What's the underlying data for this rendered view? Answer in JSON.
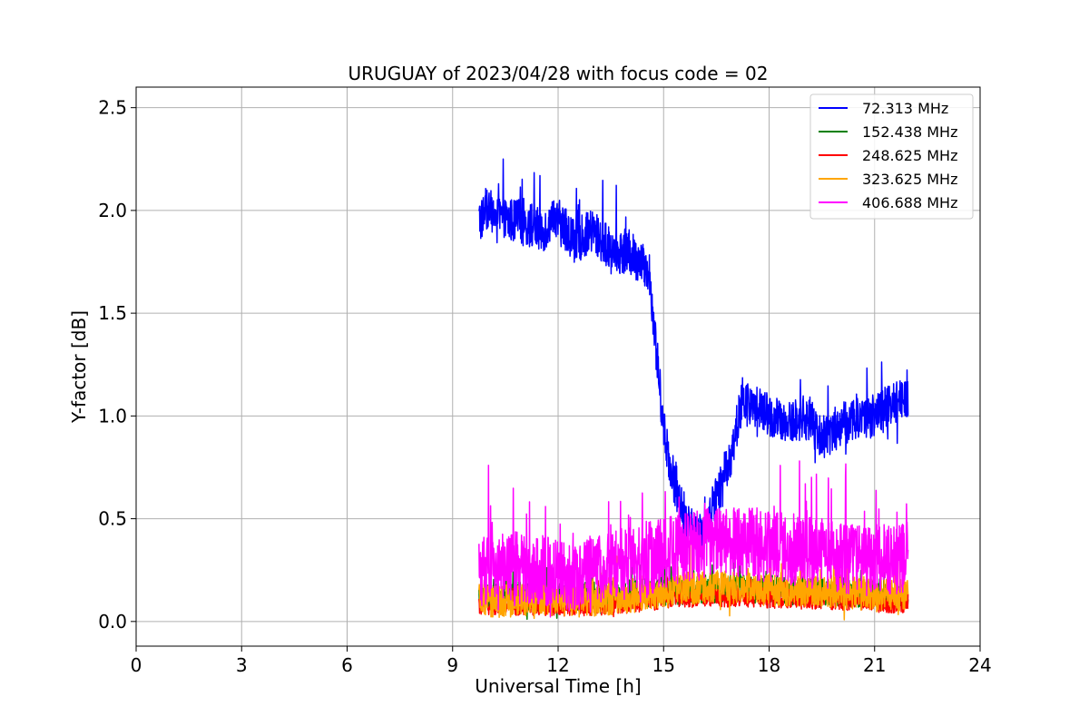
{
  "chart_data": {
    "type": "line",
    "title": "URUGUAY of 2023/04/28 with focus code = 02",
    "xlabel": "Universal Time [h]",
    "ylabel": "Y-factor [dB]",
    "xlim": [
      0,
      24
    ],
    "ylim": [
      -0.12,
      2.6
    ],
    "xticks": [
      0,
      3,
      6,
      9,
      12,
      15,
      18,
      21,
      24
    ],
    "xtick_labels": [
      "0",
      "3",
      "6",
      "9",
      "12",
      "15",
      "18",
      "21",
      "24"
    ],
    "yticks": [
      0.0,
      0.5,
      1.0,
      1.5,
      2.0,
      2.5
    ],
    "ytick_labels": [
      "0.0",
      "0.5",
      "1.0",
      "1.5",
      "2.0",
      "2.5"
    ],
    "grid": true,
    "legend_position": "top-right",
    "series": [
      {
        "name": " 72.313 MHz",
        "color": "#0000ff",
        "x": [
          9.75,
          10.0,
          10.5,
          11.0,
          11.5,
          12.0,
          12.5,
          13.0,
          13.5,
          14.0,
          14.3,
          14.6,
          14.8,
          15.0,
          15.2,
          15.5,
          15.8,
          16.0,
          16.3,
          16.6,
          16.9,
          17.2,
          17.5,
          18.0,
          18.5,
          19.0,
          19.5,
          20.0,
          20.5,
          21.0,
          21.5,
          21.95
        ],
        "y": [
          1.95,
          2.0,
          1.95,
          1.95,
          1.9,
          1.95,
          1.85,
          1.9,
          1.8,
          1.8,
          1.75,
          1.7,
          1.3,
          0.95,
          0.75,
          0.55,
          0.45,
          0.4,
          0.5,
          0.65,
          0.8,
          1.05,
          1.05,
          1.0,
          0.95,
          1.0,
          0.9,
          0.95,
          1.0,
          1.0,
          1.05,
          1.1
        ],
        "noise": 0.22
      },
      {
        "name": "152.438 MHz",
        "color": "#008000",
        "x": [
          9.75,
          10.5,
          11.5,
          12.5,
          13.5,
          14.5,
          15.5,
          16.5,
          17.5,
          18.5,
          19.5,
          20.5,
          21.5,
          21.95
        ],
        "y": [
          0.12,
          0.13,
          0.12,
          0.12,
          0.13,
          0.14,
          0.15,
          0.16,
          0.16,
          0.15,
          0.15,
          0.14,
          0.13,
          0.13
        ],
        "noise": 0.14
      },
      {
        "name": "248.625 MHz",
        "color": "#ff0000",
        "x": [
          9.75,
          10.5,
          11.5,
          12.5,
          13.5,
          14.5,
          15.5,
          16.5,
          17.5,
          18.5,
          19.5,
          20.5,
          21.5,
          21.95
        ],
        "y": [
          0.08,
          0.08,
          0.08,
          0.07,
          0.08,
          0.1,
          0.12,
          0.12,
          0.12,
          0.11,
          0.11,
          0.1,
          0.09,
          0.09
        ],
        "noise": 0.1
      },
      {
        "name": "323.625 MHz",
        "color": "#ffa500",
        "x": [
          9.75,
          10.5,
          11.5,
          12.5,
          13.5,
          14.5,
          15.5,
          16.5,
          17.5,
          18.5,
          19.5,
          20.5,
          21.5,
          21.95
        ],
        "y": [
          0.1,
          0.1,
          0.11,
          0.1,
          0.11,
          0.13,
          0.16,
          0.17,
          0.16,
          0.15,
          0.15,
          0.14,
          0.13,
          0.13
        ],
        "noise": 0.16
      },
      {
        "name": "406.688 MHz",
        "color": "#ff00ff",
        "x": [
          9.75,
          10.5,
          11.5,
          12.5,
          13.5,
          14.5,
          15.0,
          15.5,
          16.5,
          17.5,
          18.5,
          19.5,
          20.5,
          21.5,
          21.95
        ],
        "y": [
          0.25,
          0.27,
          0.25,
          0.22,
          0.27,
          0.3,
          0.33,
          0.35,
          0.38,
          0.38,
          0.35,
          0.33,
          0.3,
          0.3,
          0.3
        ],
        "noise": 0.35
      }
    ]
  }
}
